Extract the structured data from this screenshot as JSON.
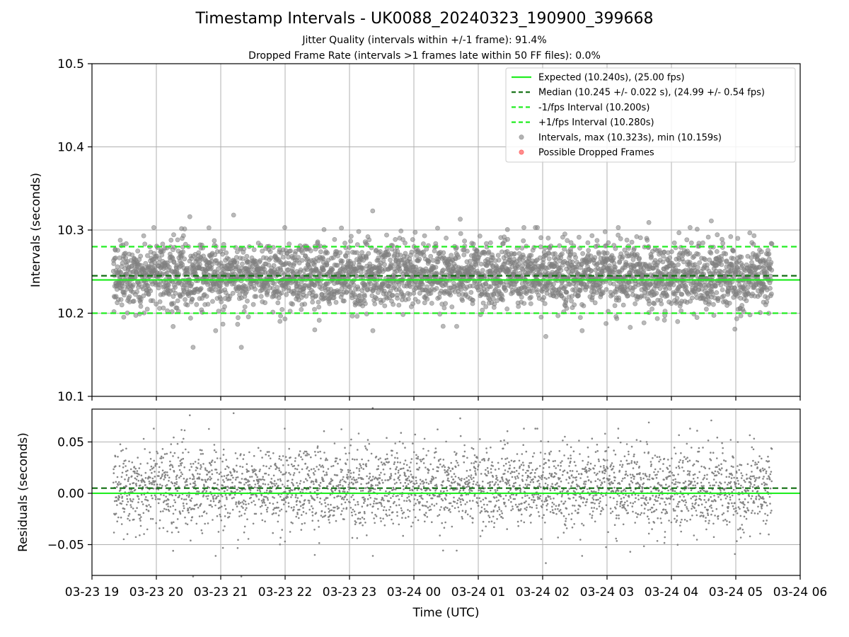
{
  "title": "Timestamp Intervals - UK0088_20240323_190900_399668",
  "subtitle_1": "Jitter Quality (intervals within +/-1 frame): 91.4%",
  "subtitle_2": "Dropped Frame Rate (intervals >1 frames late within 50 FF files): 0.0%",
  "colors": {
    "expected": "#22ee22",
    "median": "#106e10",
    "bounds": "#22ee22",
    "points": "#808080",
    "dropped": "#ff4040",
    "grid": "#b0b0b0"
  },
  "chart_data": [
    {
      "type": "scatter",
      "panel": "top",
      "ylabel": "Intervals (seconds)",
      "ylim": [
        10.1,
        10.5
      ],
      "yticks": [
        "10.1",
        "10.2",
        "10.3",
        "10.4",
        "10.5"
      ],
      "ytick_values": [
        10.1,
        10.2,
        10.3,
        10.4,
        10.5
      ],
      "xlim_hours": [
        0,
        11
      ],
      "grid": true,
      "legend_position": "top-right",
      "lines": [
        {
          "name": "Expected (10.240s), (25.00 fps)",
          "value": 10.24,
          "style": "solid"
        },
        {
          "name": "Median (10.245 +/- 0.022 s), (24.99 +/- 0.54 fps)",
          "value": 10.245,
          "style": "dashed"
        },
        {
          "name": "-1/fps Interval (10.200s)",
          "value": 10.2,
          "style": "dashed"
        },
        {
          "name": "+1/fps Interval (10.280s)",
          "value": 10.28,
          "style": "dashed"
        }
      ],
      "series": [
        {
          "name": "Intervals, max (10.323s), min (10.159s)",
          "max": 10.323,
          "min": 10.159,
          "median": 10.245,
          "std": 0.022,
          "count": 3440,
          "x_start_hour": 0.333,
          "x_end_hour": 10.56
        },
        {
          "name": "Possible Dropped Frames",
          "count": 0
        }
      ],
      "outliers": [
        {
          "x_hour": 1.57,
          "y": 10.159
        },
        {
          "x_hour": 2.32,
          "y": 10.159
        },
        {
          "x_hour": 4.36,
          "y": 10.323
        },
        {
          "x_hour": 1.52,
          "y": 10.316
        },
        {
          "x_hour": 2.2,
          "y": 10.318
        },
        {
          "x_hour": 5.72,
          "y": 10.313
        },
        {
          "x_hour": 8.65,
          "y": 10.309
        },
        {
          "x_hour": 9.62,
          "y": 10.311
        },
        {
          "x_hour": 7.05,
          "y": 10.172
        },
        {
          "x_hour": 3.46,
          "y": 10.18
        },
        {
          "x_hour": 1.26,
          "y": 10.184
        },
        {
          "x_hour": 8.36,
          "y": 10.183
        }
      ]
    },
    {
      "type": "scatter",
      "panel": "bottom",
      "ylabel": "Residuals (seconds)",
      "xlabel": "Time (UTC)",
      "ylim": [
        -0.08,
        0.082
      ],
      "yticks": [
        "−0.05",
        "0.00",
        "0.05"
      ],
      "ytick_values": [
        -0.05,
        0.0,
        0.05
      ],
      "xlim_hours": [
        0,
        11
      ],
      "xticks": [
        "03-23 19",
        "03-23 20",
        "03-23 21",
        "03-23 22",
        "03-23 23",
        "03-24 00",
        "03-24 01",
        "03-24 02",
        "03-24 03",
        "03-24 04",
        "03-24 05",
        "03-24 06"
      ],
      "xtick_hours": [
        0,
        1,
        2,
        3,
        4,
        5,
        6,
        7,
        8,
        9,
        10,
        11
      ],
      "grid": true,
      "lines": [
        {
          "name": "Expected",
          "value": 0.0,
          "style": "solid"
        },
        {
          "name": "Median",
          "value": 0.005,
          "style": "dashed"
        }
      ],
      "series": [
        {
          "name": "Residuals",
          "min": -0.081,
          "max": 0.083,
          "std": 0.022,
          "count": 3440
        }
      ]
    }
  ]
}
